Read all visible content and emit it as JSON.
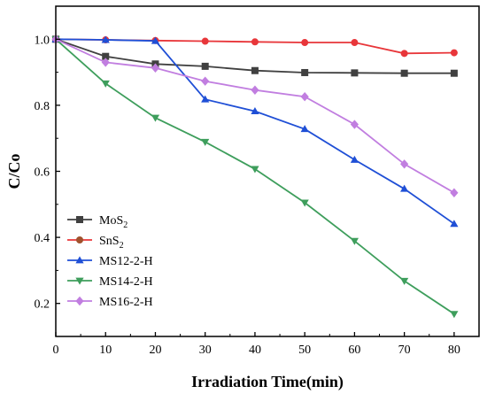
{
  "chart_data": {
    "type": "line",
    "xlabel": "Irradiation Time(min)",
    "ylabel": "C/Co",
    "xlim": [
      0,
      85
    ],
    "ylim": [
      0.1,
      1.1
    ],
    "xticks": [
      0,
      10,
      20,
      30,
      40,
      50,
      60,
      70,
      80
    ],
    "yticks": [
      0.2,
      0.4,
      0.6,
      0.8,
      1.0
    ],
    "xtick_labels": [
      "0",
      "10",
      "20",
      "30",
      "40",
      "50",
      "60",
      "70",
      "80"
    ],
    "ytick_labels": [
      "0.2",
      "0.4",
      "0.6",
      "0.8",
      "1.0"
    ],
    "grid": false,
    "legend_position": "bottom-left",
    "series": [
      {
        "name": "MoS",
        "name_sub": "2",
        "color": "#404040",
        "marker": "square",
        "x": [
          0,
          10,
          20,
          30,
          40,
          50,
          60,
          70,
          80
        ],
        "y": [
          1.0,
          0.948,
          0.925,
          0.918,
          0.905,
          0.899,
          0.898,
          0.897,
          0.897
        ]
      },
      {
        "name": "SnS",
        "name_sub": "2",
        "color": "#e8363a",
        "legend_marker_color": "#a0522d",
        "marker": "circle",
        "x": [
          0,
          10,
          20,
          30,
          40,
          50,
          60,
          70,
          80
        ],
        "y": [
          1.0,
          0.998,
          0.996,
          0.994,
          0.992,
          0.99,
          0.99,
          0.957,
          0.959
        ]
      },
      {
        "name": "MS12-2-H",
        "name_sub": "",
        "color": "#1f4fd6",
        "marker": "triangle-up",
        "x": [
          0,
          10,
          20,
          30,
          40,
          50,
          60,
          70,
          80
        ],
        "y": [
          1.0,
          0.998,
          0.995,
          0.818,
          0.782,
          0.728,
          0.635,
          0.547,
          0.441
        ]
      },
      {
        "name": "MS14-2-H",
        "name_sub": "",
        "color": "#3e9e5c",
        "marker": "triangle-down",
        "x": [
          0,
          10,
          20,
          30,
          40,
          50,
          60,
          70,
          80
        ],
        "y": [
          1.0,
          0.866,
          0.762,
          0.689,
          0.607,
          0.505,
          0.389,
          0.268,
          0.168
        ]
      },
      {
        "name": "MS16-2-H",
        "name_sub": "",
        "color": "#c17ee0",
        "marker": "diamond",
        "x": [
          0,
          10,
          20,
          30,
          40,
          50,
          60,
          70,
          80
        ],
        "y": [
          1.0,
          0.93,
          0.913,
          0.873,
          0.846,
          0.826,
          0.742,
          0.622,
          0.535
        ]
      }
    ]
  }
}
